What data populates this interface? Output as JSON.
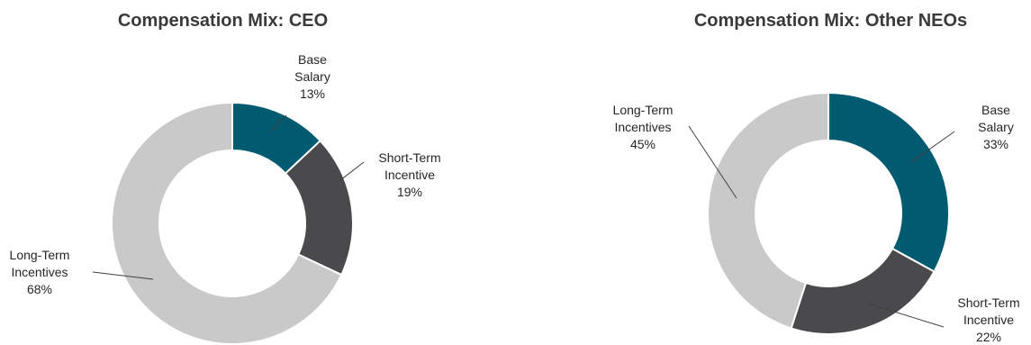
{
  "chart_data": [
    {
      "type": "pie",
      "title": "Compensation Mix: CEO",
      "categories": [
        "Base Salary",
        "Short-Term Incentive",
        "Long-Term Incentives"
      ],
      "values": [
        13,
        19,
        68
      ],
      "value_labels": [
        "13%",
        "19%",
        "68%"
      ],
      "label_lines": [
        [
          "Base",
          "Salary"
        ],
        [
          "Short-Term",
          "Incentive"
        ],
        [
          "Long-Term",
          "Incentives"
        ]
      ],
      "colors": [
        "#005a70",
        "#4a4a4c",
        "#c9c9c9"
      ]
    },
    {
      "type": "pie",
      "title": "Compensation Mix: Other NEOs",
      "categories": [
        "Base Salary",
        "Short-Term Incentive",
        "Long-Term Incentives"
      ],
      "values": [
        33,
        22,
        45
      ],
      "value_labels": [
        "33%",
        "22%",
        "45%"
      ],
      "label_lines": [
        [
          "Base",
          "Salary"
        ],
        [
          "Short-Term",
          "Incentive"
        ],
        [
          "Long-Term",
          "Incentives"
        ]
      ],
      "colors": [
        "#005a70",
        "#4a4a4c",
        "#c9c9c9"
      ]
    }
  ]
}
